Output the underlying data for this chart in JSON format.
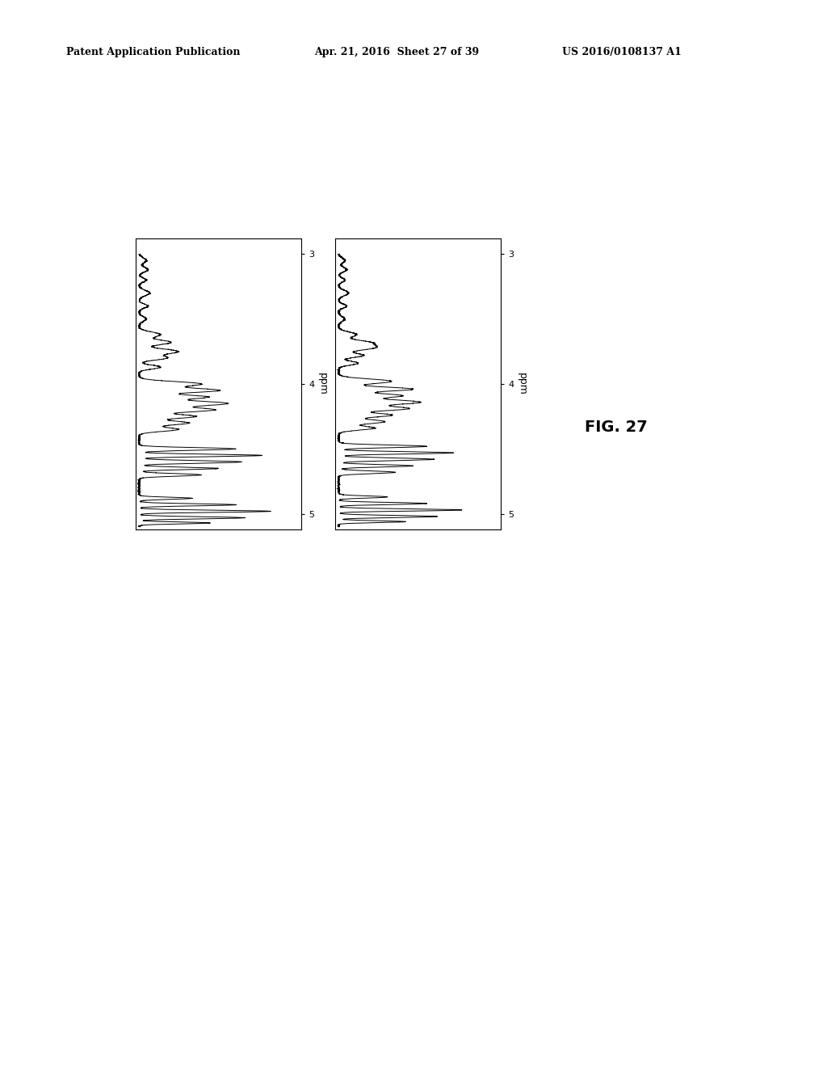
{
  "title_left": "Patent Application Publication",
  "title_center": "Apr. 21, 2016  Sheet 27 of 39",
  "title_right": "US 2016/0108137 A1",
  "fig_label": "FIG. 27",
  "ppm_label": "ppm",
  "background_color": "#ffffff",
  "line_color": "#000000",
  "header_fontsize": 9,
  "tick_fontsize": 8,
  "ppm_fontsize": 9,
  "fig_label_fontsize": 14
}
